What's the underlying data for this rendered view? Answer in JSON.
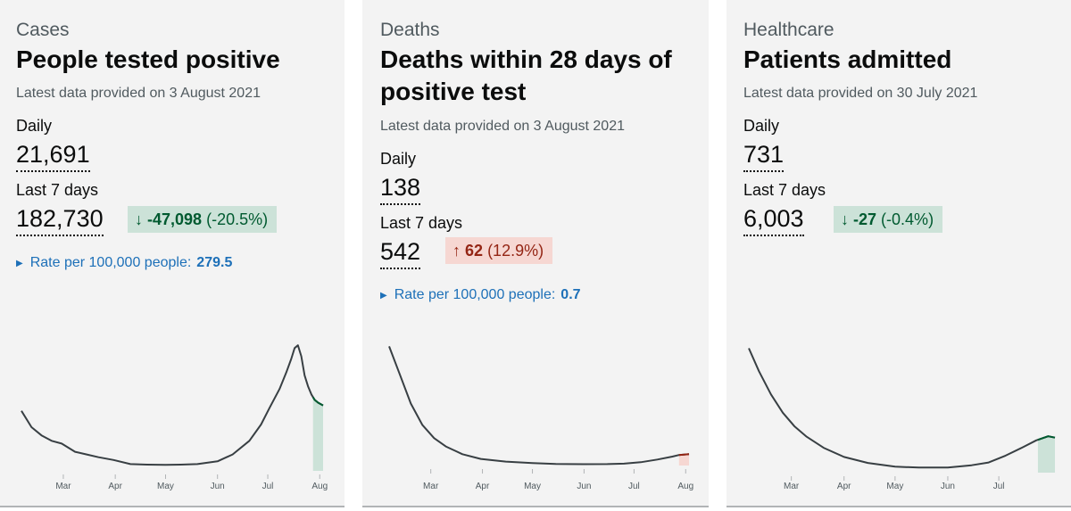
{
  "cards": [
    {
      "category": "Cases",
      "title": "People tested positive",
      "latest": "Latest data provided on 3 August 2021",
      "daily_label": "Daily",
      "daily_value": "21,691",
      "week_label": "Last 7 days",
      "week_value": "182,730",
      "change_arrow": "↓",
      "change_value": "-47,098",
      "change_pct": "(-20.5%)",
      "change_direction": "down",
      "rate_label": "Rate per 100,000 people:",
      "rate_value": "279.5",
      "rate_icon": "triangle-right-icon"
    },
    {
      "category": "Deaths",
      "title": "Deaths within 28 days of positive test",
      "latest": "Latest data provided on 3 August 2021",
      "daily_label": "Daily",
      "daily_value": "138",
      "week_label": "Last 7 days",
      "week_value": "542",
      "change_arrow": "↑",
      "change_value": "62",
      "change_pct": "(12.9%)",
      "change_direction": "up",
      "rate_label": "Rate per 100,000 people:",
      "rate_value": "0.7",
      "rate_icon": "triangle-right-icon"
    },
    {
      "category": "Healthcare",
      "title": "Patients admitted",
      "latest": "Latest data provided on 30 July 2021",
      "daily_label": "Daily",
      "daily_value": "731",
      "week_label": "Last 7 days",
      "week_value": "6,003",
      "change_arrow": "↓",
      "change_value": "-27",
      "change_pct": "(-0.4%)",
      "change_direction": "down",
      "rate_label": "",
      "rate_value": ""
    }
  ],
  "colors": {
    "line": "#383f43",
    "down_fill": "#cce2d8",
    "down_line": "#005a30",
    "up_fill": "#f6d7d2",
    "up_line": "#942514",
    "link": "#1d70b8",
    "card_bg": "#f3f3f3"
  },
  "chart_data": [
    {
      "type": "line",
      "x_ticks": [
        "Mar",
        "Apr",
        "May",
        "Jun",
        "Jul",
        "Aug"
      ],
      "x_start": "2021-02-04",
      "x_end": "2021-08-03",
      "x": [
        "2021-02-04",
        "2021-02-10",
        "2021-02-16",
        "2021-02-22",
        "2021-02-28",
        "2021-03-08",
        "2021-03-15",
        "2021-03-22",
        "2021-03-31",
        "2021-04-10",
        "2021-04-20",
        "2021-05-01",
        "2021-05-10",
        "2021-05-20",
        "2021-06-01",
        "2021-06-10",
        "2021-06-20",
        "2021-06-27",
        "2021-07-02",
        "2021-07-08",
        "2021-07-12",
        "2021-07-15",
        "2021-07-17",
        "2021-07-19",
        "2021-07-21",
        "2021-07-23",
        "2021-07-25",
        "2021-07-27",
        "2021-07-29",
        "2021-07-31",
        "2021-08-03"
      ],
      "values": [
        22,
        16,
        13,
        11,
        10,
        7,
        6,
        5,
        4,
        2.5,
        2.3,
        2.2,
        2.3,
        2.5,
        3.5,
        6,
        11,
        17,
        23,
        30,
        36,
        41,
        45,
        46,
        42,
        35,
        31,
        28,
        26,
        25,
        24
      ],
      "ylim": [
        0,
        50
      ],
      "highlight_from": "2021-07-28",
      "highlight_direction": "down"
    },
    {
      "type": "line",
      "x_ticks": [
        "Mar",
        "Apr",
        "May",
        "Jun",
        "Jul",
        "Aug"
      ],
      "x_start": "2021-02-04",
      "x_end": "2021-08-03",
      "x": [
        "2021-02-04",
        "2021-02-10",
        "2021-02-17",
        "2021-02-24",
        "2021-03-03",
        "2021-03-10",
        "2021-03-20",
        "2021-03-31",
        "2021-04-15",
        "2021-05-01",
        "2021-05-15",
        "2021-06-01",
        "2021-06-15",
        "2021-06-25",
        "2021-07-05",
        "2021-07-15",
        "2021-07-24",
        "2021-07-28",
        "2021-08-03"
      ],
      "values": [
        1000,
        780,
        520,
        340,
        230,
        160,
        95,
        55,
        33,
        20,
        13,
        11,
        12,
        16,
        28,
        50,
        75,
        88,
        95
      ],
      "ylim": [
        0,
        1100
      ],
      "highlight_from": "2021-07-28",
      "highlight_direction": "up"
    },
    {
      "type": "line",
      "x_ticks": [
        "Mar",
        "Apr",
        "May",
        "Jun",
        "Jul"
      ],
      "x_start": "2021-02-04",
      "x_end": "2021-08-03",
      "x": [
        "2021-02-04",
        "2021-02-10",
        "2021-02-17",
        "2021-02-24",
        "2021-03-03",
        "2021-03-10",
        "2021-03-20",
        "2021-04-01",
        "2021-04-15",
        "2021-05-01",
        "2021-05-15",
        "2021-06-01",
        "2021-06-15",
        "2021-06-25",
        "2021-07-05",
        "2021-07-15",
        "2021-07-23",
        "2021-07-30",
        "2021-08-03"
      ],
      "values": [
        2700,
        2200,
        1700,
        1300,
        1000,
        780,
        540,
        340,
        210,
        130,
        110,
        110,
        160,
        220,
        370,
        550,
        700,
        790,
        760
      ],
      "ylim": [
        0,
        3000
      ],
      "highlight_from": "2021-07-24",
      "highlight_direction": "down"
    }
  ]
}
